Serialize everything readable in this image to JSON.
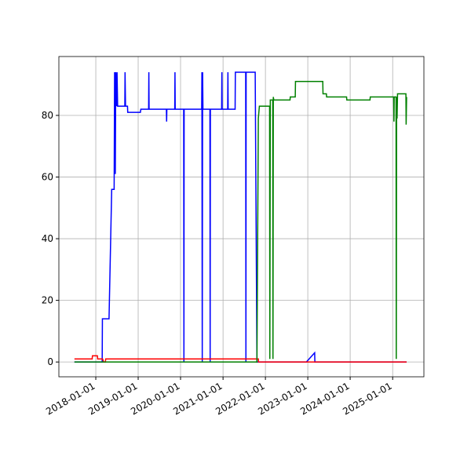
{
  "chart_data": {
    "type": "line",
    "grid": true,
    "xlim": [
      "2017-02-17",
      "2025-09-27"
    ],
    "ylim": [
      -4.8,
      99.1
    ],
    "xticks": [
      "2018-01-01",
      "2019-01-01",
      "2020-01-01",
      "2021-01-01",
      "2022-01-01",
      "2023-01-01",
      "2024-01-01",
      "2025-01-01"
    ],
    "yticks": [
      0,
      20,
      40,
      60,
      80
    ],
    "series": [
      {
        "color": "#0000ff",
        "x": [
          "2017-07-01",
          "2018-02-25",
          "2018-02-27",
          "2018-04-25",
          "2018-05-18",
          "2018-06-08",
          "2018-06-12",
          "2018-06-18",
          "2018-06-22",
          "2018-06-28",
          "2018-07-03",
          "2018-07-08",
          "2018-09-08",
          "2018-09-10",
          "2018-09-14",
          "2018-10-01",
          "2018-10-03",
          "2019-01-20",
          "2019-01-24",
          "2019-04-01",
          "2019-04-03",
          "2019-04-05",
          "2019-09-01",
          "2019-09-03",
          "2019-09-05",
          "2019-11-12",
          "2019-11-14",
          "2019-11-16",
          "2020-01-28",
          "2020-01-30",
          "2020-02-01",
          "2020-07-01",
          "2020-07-03",
          "2020-07-06",
          "2020-07-09",
          "2020-07-12",
          "2020-09-10",
          "2020-09-12",
          "2020-09-14",
          "2020-12-20",
          "2020-12-22",
          "2020-12-24",
          "2021-02-10",
          "2021-02-12",
          "2021-02-14",
          "2021-04-15",
          "2021-04-17",
          "2021-07-15",
          "2021-07-17",
          "2021-07-19",
          "2021-10-05",
          "2021-10-20",
          "2022-12-20",
          "2023-03-01",
          "2023-03-03",
          "2025-05-01"
        ],
        "values": [
          0,
          0,
          14,
          14,
          56,
          56,
          94,
          61,
          94,
          83,
          94,
          83,
          83,
          94,
          83,
          83,
          81,
          81,
          82,
          82,
          94,
          82,
          82,
          78,
          82,
          82,
          94,
          82,
          82,
          0,
          82,
          82,
          94,
          0,
          94,
          82,
          82,
          0,
          82,
          82,
          94,
          82,
          82,
          94,
          82,
          82,
          94,
          94,
          0,
          94,
          94,
          0,
          0,
          3,
          0,
          0
        ]
      },
      {
        "color": "#ff0000",
        "x": [
          "2017-07-01",
          "2017-12-01",
          "2017-12-03",
          "2018-01-15",
          "2018-01-17",
          "2018-03-01",
          "2018-03-10",
          "2018-03-25",
          "2018-03-27",
          "2021-11-01",
          "2021-11-03",
          "2025-05-01"
        ],
        "values": [
          1,
          1,
          2,
          2,
          1,
          1,
          0,
          0,
          1,
          1,
          0,
          0
        ]
      },
      {
        "color": "#008000",
        "x": [
          "2017-07-01",
          "2021-10-20",
          "2021-11-01",
          "2021-11-10",
          "2022-02-06",
          "2022-02-08",
          "2022-02-12",
          "2022-03-05",
          "2022-03-07",
          "2022-03-10",
          "2022-03-14",
          "2022-08-01",
          "2022-08-03",
          "2022-09-15",
          "2022-09-17",
          "2023-05-10",
          "2023-05-12",
          "2023-06-10",
          "2023-06-12",
          "2023-12-01",
          "2023-12-03",
          "2024-06-20",
          "2024-06-22",
          "2025-01-10",
          "2025-01-12",
          "2025-01-14",
          "2025-01-30",
          "2025-02-01",
          "2025-02-04",
          "2025-02-08",
          "2025-02-12",
          "2025-04-25",
          "2025-04-27",
          "2025-05-01"
        ],
        "values": [
          0,
          0,
          79,
          83,
          83,
          1,
          85,
          85,
          1,
          86,
          85,
          85,
          86,
          86,
          91,
          91,
          87,
          87,
          86,
          86,
          85,
          85,
          86,
          86,
          78,
          86,
          86,
          1,
          86,
          79,
          87,
          87,
          77,
          86
        ]
      }
    ]
  }
}
